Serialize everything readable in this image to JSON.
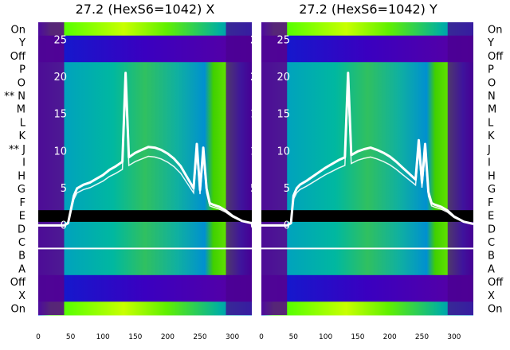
{
  "chart_data": [
    {
      "type": "heatmap",
      "title": "27.2 (HexS6=1042) X",
      "x_ticks": [
        0,
        50,
        100,
        150,
        200,
        250,
        300
      ],
      "xlim": [
        0,
        330
      ],
      "y_ticks": [
        0,
        5,
        10,
        15,
        20,
        25
      ],
      "ylim": [
        -2,
        27
      ],
      "row_labels": [
        "On",
        "Y",
        "Off",
        "P",
        "O",
        "** N",
        "M",
        "L",
        "K",
        "** J",
        "I",
        "H",
        "G",
        "F",
        "E",
        "D",
        "C",
        "B",
        "A",
        "Off",
        "X",
        "On"
      ],
      "row_label_side": "left",
      "grid": false,
      "overlay": {
        "x": [
          0,
          40,
          46,
          55,
          60,
          70,
          80,
          90,
          100,
          110,
          120,
          130,
          135,
          140,
          150,
          160,
          170,
          180,
          190,
          200,
          210,
          220,
          230,
          240,
          245,
          250,
          255,
          260,
          265,
          270,
          280,
          290,
          300,
          315,
          330
        ],
        "y": [
          0,
          0,
          0.3,
          4.0,
          5.0,
          5.5,
          5.8,
          6.3,
          6.8,
          7.5,
          8.0,
          8.6,
          20.6,
          9.2,
          9.8,
          10.2,
          10.6,
          10.5,
          10.2,
          9.7,
          9.0,
          8.0,
          6.5,
          5.0,
          11.0,
          4.8,
          10.5,
          5.0,
          3.0,
          2.8,
          2.5,
          2.0,
          1.3,
          0.6,
          0.3
        ]
      }
    },
    {
      "type": "heatmap",
      "title": "27.2 (HexS6=1042) Y",
      "x_ticks": [
        0,
        50,
        100,
        150,
        200,
        250,
        300
      ],
      "xlim": [
        0,
        330
      ],
      "y_ticks": [
        0,
        5,
        10,
        15,
        20,
        25
      ],
      "ylim": [
        -2,
        27
      ],
      "row_labels": [
        "On",
        "Y",
        "Off",
        "P",
        "O",
        "N",
        "M",
        "L",
        "K",
        "J",
        "I",
        "H",
        "G",
        "F",
        "E",
        "D",
        "C",
        "B",
        "A",
        "Off",
        "X",
        "On"
      ],
      "row_label_side": "right",
      "grid": false,
      "overlay": {
        "x": [
          0,
          40,
          46,
          50,
          55,
          60,
          70,
          80,
          90,
          100,
          110,
          120,
          130,
          135,
          140,
          150,
          160,
          170,
          180,
          190,
          200,
          210,
          220,
          230,
          240,
          245,
          250,
          255,
          260,
          265,
          270,
          280,
          290,
          300,
          315,
          330
        ],
        "y": [
          0,
          0,
          0.3,
          4.0,
          5.0,
          5.5,
          6.0,
          6.6,
          7.2,
          7.8,
          8.3,
          8.8,
          9.2,
          20.6,
          9.5,
          10.0,
          10.3,
          10.5,
          10.2,
          9.8,
          9.3,
          8.6,
          7.8,
          7.0,
          6.2,
          11.5,
          5.8,
          11.0,
          4.5,
          3.0,
          2.8,
          2.5,
          2.0,
          1.2,
          0.5,
          0.2
        ]
      }
    }
  ]
}
